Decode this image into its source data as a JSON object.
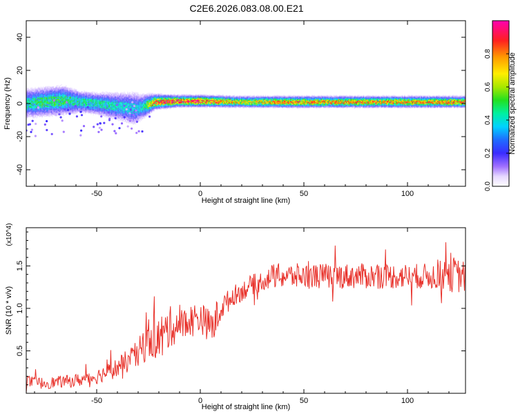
{
  "title": "C2E6.2026.083.08.00.E21",
  "chart_data": [
    {
      "type": "heatmap",
      "xlabel": "Height of straight line (km)",
      "ylabel": "Frequency (Hz)",
      "xlim": [
        -84,
        128
      ],
      "ylim": [
        -50,
        50
      ],
      "x_ticks": [
        -50,
        0,
        50,
        100
      ],
      "y_ticks": [
        -40,
        -20,
        0,
        20,
        40
      ],
      "x_tick_labels": [
        "-50",
        "0",
        "50",
        "100"
      ],
      "y_tick_labels": [
        "-40",
        "-20",
        "0",
        "20",
        "40"
      ],
      "colorbar": {
        "label": "Normalized spectral amplitude",
        "range": [
          0,
          1
        ],
        "ticks": [
          0,
          0.2,
          0.4,
          0.6,
          0.8
        ],
        "tick_labels": [
          "0.0",
          "0.2",
          "0.4",
          "0.6",
          "0.8"
        ],
        "colormap": "rainbow (white → violet → blue → cyan → green → yellow → orange → red → magenta)"
      },
      "ridge": {
        "x": [
          -84,
          -75,
          -66,
          -58,
          -50,
          -44,
          -38,
          -32,
          -28,
          -22,
          -10,
          0,
          20,
          40,
          60,
          80,
          100,
          120,
          128
        ],
        "center_hz": [
          0,
          1,
          2,
          1,
          0,
          -1,
          -2,
          -3,
          -2,
          1,
          1.5,
          1.5,
          1,
          1,
          1,
          1,
          1,
          1,
          1
        ],
        "spread_hz": [
          8,
          8,
          8,
          6,
          6,
          7,
          8,
          9,
          7,
          4,
          3,
          3,
          3,
          3,
          3,
          3,
          3,
          3,
          3
        ],
        "peak_amplitude": [
          0.45,
          0.5,
          0.5,
          0.45,
          0.45,
          0.45,
          0.4,
          0.4,
          0.4,
          0.85,
          0.95,
          0.95,
          0.7,
          0.8,
          0.8,
          0.8,
          0.8,
          0.8,
          0.8
        ]
      }
    },
    {
      "type": "line",
      "xlabel": "Height of straight line (km)",
      "ylabel": "SNR (10 * v/v)",
      "y_multiplier": "(x10^4)",
      "xlim": [
        -84,
        128
      ],
      "ylim": [
        0,
        1.95
      ],
      "x_ticks": [
        -50,
        0,
        50,
        100
      ],
      "y_ticks": [
        0.5,
        1.0,
        1.5
      ],
      "x_tick_labels": [
        "-50",
        "0",
        "50",
        "100"
      ],
      "y_tick_labels": [
        "0.5",
        "1.0",
        "1.5"
      ],
      "color": "#e8312a",
      "x": [
        -84,
        -80,
        -75,
        -70,
        -65,
        -60,
        -55,
        -50,
        -45,
        -40,
        -35,
        -30,
        -27,
        -25,
        -22,
        -20,
        -17,
        -15,
        -12,
        -10,
        -7,
        -5,
        -2,
        0,
        2,
        4,
        6,
        8,
        10,
        12,
        14,
        16,
        18,
        20,
        23,
        25,
        28,
        30,
        33,
        35,
        40,
        45,
        50,
        55,
        60,
        65,
        70,
        75,
        80,
        85,
        90,
        95,
        100,
        105,
        110,
        115,
        118,
        120,
        122,
        125,
        128
      ],
      "y": [
        0.15,
        0.12,
        0.12,
        0.13,
        0.14,
        0.15,
        0.17,
        0.2,
        0.25,
        0.3,
        0.38,
        0.45,
        0.58,
        0.65,
        0.68,
        0.62,
        0.7,
        0.78,
        0.8,
        0.8,
        0.82,
        0.85,
        0.88,
        0.9,
        0.85,
        0.8,
        0.78,
        0.9,
        1.0,
        1.05,
        1.1,
        1.15,
        1.18,
        1.2,
        1.25,
        1.28,
        1.3,
        1.33,
        1.35,
        1.38,
        1.38,
        1.38,
        1.38,
        1.38,
        1.38,
        1.38,
        1.38,
        1.38,
        1.38,
        1.38,
        1.38,
        1.38,
        1.38,
        1.38,
        1.38,
        1.38,
        1.4,
        1.45,
        1.4,
        1.38,
        1.38
      ],
      "amplitude": [
        0.07,
        0.07,
        0.07,
        0.07,
        0.07,
        0.08,
        0.08,
        0.09,
        0.1,
        0.12,
        0.14,
        0.18,
        0.22,
        0.25,
        0.28,
        0.3,
        0.28,
        0.25,
        0.22,
        0.2,
        0.2,
        0.2,
        0.2,
        0.2,
        0.18,
        0.2,
        0.25,
        0.2,
        0.15,
        0.14,
        0.13,
        0.12,
        0.12,
        0.12,
        0.12,
        0.12,
        0.12,
        0.12,
        0.13,
        0.15,
        0.15,
        0.15,
        0.15,
        0.15,
        0.15,
        0.15,
        0.15,
        0.15,
        0.15,
        0.15,
        0.15,
        0.15,
        0.15,
        0.15,
        0.15,
        0.17,
        0.2,
        0.25,
        0.22,
        0.2,
        0.2
      ]
    }
  ]
}
